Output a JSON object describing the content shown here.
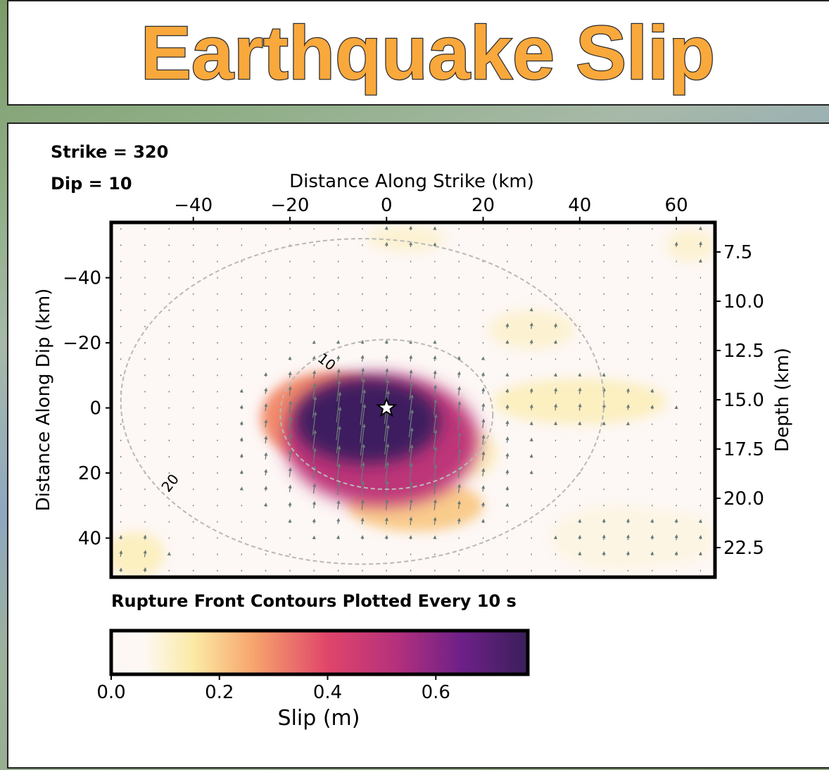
{
  "header": {
    "title": "Earthquake Slip",
    "title_color": "#f9a83c"
  },
  "annotations": {
    "strike": "Strike = 320",
    "dip": "Dip = 10",
    "footnote": "Rupture Front Contours Plotted Every 10 s"
  },
  "chart_data": {
    "type": "heatmap",
    "xlabel": "Distance Along Strike (km)",
    "ylabel": "Distance Along Dip (km)",
    "y2label": "Depth (km)",
    "xlim": [
      -57,
      68
    ],
    "ylim": [
      -57,
      52
    ],
    "depth_lim": [
      6.0,
      24.0
    ],
    "xticks": [
      {
        "value": -40,
        "label": "−40"
      },
      {
        "value": -20,
        "label": "−20"
      },
      {
        "value": 0,
        "label": "0"
      },
      {
        "value": 20,
        "label": "20"
      },
      {
        "value": 40,
        "label": "40"
      },
      {
        "value": 60,
        "label": "60"
      }
    ],
    "yticks": [
      {
        "value": -40,
        "label": "−40"
      },
      {
        "value": -20,
        "label": "−20"
      },
      {
        "value": 0,
        "label": "0"
      },
      {
        "value": 20,
        "label": "20"
      },
      {
        "value": 40,
        "label": "40"
      }
    ],
    "depth_ticks": [
      {
        "value": 7.5,
        "label": "7.5"
      },
      {
        "value": 10.0,
        "label": "10.0"
      },
      {
        "value": 12.5,
        "label": "12.5"
      },
      {
        "value": 15.0,
        "label": "15.0"
      },
      {
        "value": 17.5,
        "label": "17.5"
      },
      {
        "value": 20.0,
        "label": "20.0"
      },
      {
        "value": 22.5,
        "label": "22.5"
      }
    ],
    "hypocenter": {
      "x": 0,
      "y": 0
    },
    "slip_patches": [
      {
        "x": -4,
        "y": 4,
        "rx": 15,
        "ry": 13,
        "slip": 0.76
      },
      {
        "x": -1,
        "y": 10,
        "rx": 20,
        "ry": 20,
        "slip": 0.5
      },
      {
        "x": -12,
        "y": 3,
        "rx": 14,
        "ry": 14,
        "slip": 0.3
      },
      {
        "x": 6,
        "y": 30,
        "rx": 14,
        "ry": 8,
        "slip": 0.2
      },
      {
        "x": 15,
        "y": 14,
        "rx": 8,
        "ry": 8,
        "slip": 0.12
      },
      {
        "x": 40,
        "y": -2,
        "rx": 18,
        "ry": 7,
        "slip": 0.12
      },
      {
        "x": 30,
        "y": -24,
        "rx": 9,
        "ry": 6,
        "slip": 0.1
      },
      {
        "x": 4,
        "y": -52,
        "rx": 8,
        "ry": 4,
        "slip": 0.1
      },
      {
        "x": 48,
        "y": 40,
        "rx": 14,
        "ry": 10,
        "slip": 0.08
      },
      {
        "x": 63,
        "y": -50,
        "rx": 5,
        "ry": 5,
        "slip": 0.1
      },
      {
        "x": -52,
        "y": 45,
        "rx": 6,
        "ry": 7,
        "slip": 0.12
      },
      {
        "x": 60,
        "y": 40,
        "rx": 8,
        "ry": 8,
        "slip": 0.08
      }
    ],
    "rupture_contours": [
      {
        "time": "10",
        "cx": 0,
        "cy": 2,
        "rx": 22,
        "ry": 23
      },
      {
        "time": "20",
        "cx": -5,
        "cy": -2,
        "rx": 50,
        "ry": 50
      }
    ],
    "colorbar": {
      "label": "Slip (m)",
      "colormap": "magma_r",
      "min": 0.0,
      "max": 0.77,
      "ticks": [
        {
          "value": 0.0,
          "label": "0.0"
        },
        {
          "value": 0.2,
          "label": "0.2"
        },
        {
          "value": 0.4,
          "label": "0.4"
        },
        {
          "value": 0.6,
          "label": "0.6"
        }
      ]
    }
  }
}
